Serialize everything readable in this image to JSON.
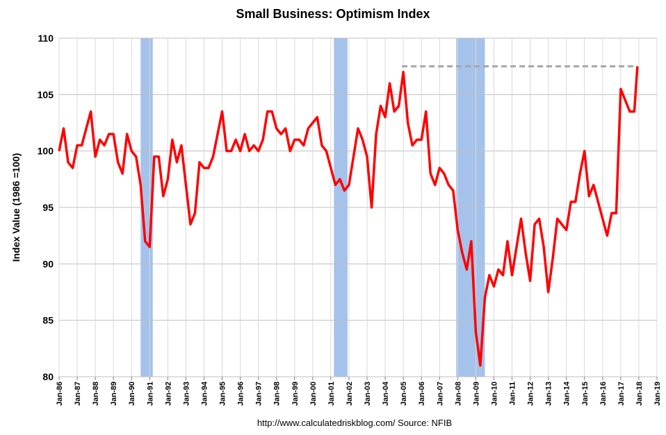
{
  "chart_data": {
    "type": "line",
    "title": "Small Business: Optimism Index",
    "y_label": "Index Value (1986 =100)",
    "source": "http://www.calculatedriskblog.com/  Source: NFIB",
    "x": [
      1986,
      1986.25,
      1986.5,
      1986.75,
      1987,
      1987.25,
      1987.5,
      1987.75,
      1988,
      1988.25,
      1988.5,
      1988.75,
      1989,
      1989.25,
      1989.5,
      1989.75,
      1990,
      1990.25,
      1990.5,
      1990.75,
      1991,
      1991.25,
      1991.5,
      1991.75,
      1992,
      1992.25,
      1992.5,
      1992.75,
      1993,
      1993.25,
      1993.5,
      1993.75,
      1994,
      1994.25,
      1994.5,
      1994.75,
      1995,
      1995.25,
      1995.5,
      1995.75,
      1996,
      1996.25,
      1996.5,
      1996.75,
      1997,
      1997.25,
      1997.5,
      1997.75,
      1998,
      1998.25,
      1998.5,
      1998.75,
      1999,
      1999.25,
      1999.5,
      1999.75,
      2000,
      2000.25,
      2000.5,
      2000.75,
      2001,
      2001.25,
      2001.5,
      2001.75,
      2002,
      2002.25,
      2002.5,
      2002.75,
      2003,
      2003.25,
      2003.5,
      2003.75,
      2004,
      2004.25,
      2004.5,
      2004.75,
      2005,
      2005.25,
      2005.5,
      2005.75,
      2006,
      2006.25,
      2006.5,
      2006.75,
      2007,
      2007.25,
      2007.5,
      2007.75,
      2008,
      2008.25,
      2008.5,
      2008.75,
      2009,
      2009.25,
      2009.5,
      2009.75,
      2010,
      2010.25,
      2010.5,
      2010.75,
      2011,
      2011.25,
      2011.5,
      2011.75,
      2012,
      2012.25,
      2012.5,
      2012.75,
      2013,
      2013.25,
      2013.5,
      2013.75,
      2014,
      2014.25,
      2014.5,
      2014.75,
      2015,
      2015.25,
      2015.5,
      2015.75,
      2016,
      2016.25,
      2016.5,
      2016.75,
      2017,
      2017.25,
      2017.5,
      2017.75,
      2017.92
    ],
    "series": [
      {
        "name": "Optimism Index",
        "color": "#ff0000",
        "values": [
          100,
          102,
          99,
          98.5,
          100.5,
          100.5,
          102,
          103.5,
          99.5,
          101,
          100.5,
          101.5,
          101.5,
          99,
          98,
          101.5,
          100,
          99.5,
          97,
          92,
          91.5,
          99.5,
          99.5,
          96,
          97.5,
          101,
          99,
          100.5,
          97,
          93.5,
          94.5,
          99,
          98.5,
          98.5,
          99.5,
          101.5,
          103.5,
          100,
          100,
          101,
          100,
          101.5,
          100,
          100.5,
          100,
          101,
          103.5,
          103.5,
          102,
          101.5,
          102,
          100,
          101,
          101,
          100.5,
          102,
          102.5,
          103,
          100.5,
          100,
          98.5,
          97,
          97.5,
          96.5,
          97,
          99.5,
          102,
          101,
          99.5,
          95,
          101.5,
          104,
          103,
          106,
          103.5,
          104,
          107,
          102.5,
          100.5,
          101,
          101,
          103.5,
          98,
          97,
          98.5,
          98,
          97,
          96.5,
          93,
          91,
          89.5,
          92,
          84,
          81,
          87,
          89,
          88,
          89.5,
          89,
          92,
          89,
          91.5,
          94,
          91,
          88.5,
          93.5,
          94,
          91.5,
          87.5,
          90.5,
          94,
          93.5,
          93,
          95.5,
          95.5,
          98,
          100,
          96,
          97,
          95.5,
          94,
          92.5,
          94.5,
          94.5,
          105.5,
          104.5,
          103.5,
          103.5,
          107.5
        ]
      }
    ],
    "recessions": [
      [
        1990.5,
        1991.17
      ],
      [
        2001.17,
        2001.92
      ],
      [
        2007.92,
        2009.5
      ]
    ],
    "reference_line": {
      "value": 107.5,
      "x": [
        2004.92,
        2017.92
      ]
    },
    "xlim": [
      1986,
      2019
    ],
    "xticks": [
      {
        "value": 1986,
        "label": "Jan-86"
      },
      {
        "value": 1987,
        "label": "Jan-87"
      },
      {
        "value": 1988,
        "label": "Jan-88"
      },
      {
        "value": 1989,
        "label": "Jan-89"
      },
      {
        "value": 1990,
        "label": "Jan-90"
      },
      {
        "value": 1991,
        "label": "Jan-91"
      },
      {
        "value": 1992,
        "label": "Jan-92"
      },
      {
        "value": 1993,
        "label": "Jan-93"
      },
      {
        "value": 1994,
        "label": "Jan-94"
      },
      {
        "value": 1995,
        "label": "Jan-95"
      },
      {
        "value": 1996,
        "label": "Jan-96"
      },
      {
        "value": 1997,
        "label": "Jan-97"
      },
      {
        "value": 1998,
        "label": "Jan-98"
      },
      {
        "value": 1999,
        "label": "Jan-99"
      },
      {
        "value": 2000,
        "label": "Jan-00"
      },
      {
        "value": 2001,
        "label": "Jan-01"
      },
      {
        "value": 2002,
        "label": "Jan-02"
      },
      {
        "value": 2003,
        "label": "Jan-03"
      },
      {
        "value": 2004,
        "label": "Jan-04"
      },
      {
        "value": 2005,
        "label": "Jan-05"
      },
      {
        "value": 2006,
        "label": "Jan-06"
      },
      {
        "value": 2007,
        "label": "Jan-07"
      },
      {
        "value": 2008,
        "label": "Jan-08"
      },
      {
        "value": 2009,
        "label": "Jan-09"
      },
      {
        "value": 2010,
        "label": "Jan-10"
      },
      {
        "value": 2011,
        "label": "Jan-11"
      },
      {
        "value": 2012,
        "label": "Jan-12"
      },
      {
        "value": 2013,
        "label": "Jan-13"
      },
      {
        "value": 2014,
        "label": "Jan-14"
      },
      {
        "value": 2015,
        "label": "Jan-15"
      },
      {
        "value": 2016,
        "label": "Jan-16"
      },
      {
        "value": 2017,
        "label": "Jan-17"
      },
      {
        "value": 2018,
        "label": "Jan-18"
      },
      {
        "value": 2019,
        "label": "Jan-19"
      }
    ],
    "ylim": [
      80,
      110
    ],
    "yticks": [
      80,
      85,
      90,
      95,
      100,
      105,
      110
    ],
    "grid": true,
    "recession_color": "#a4c2ea",
    "reference_color": "#a6a6a6"
  }
}
